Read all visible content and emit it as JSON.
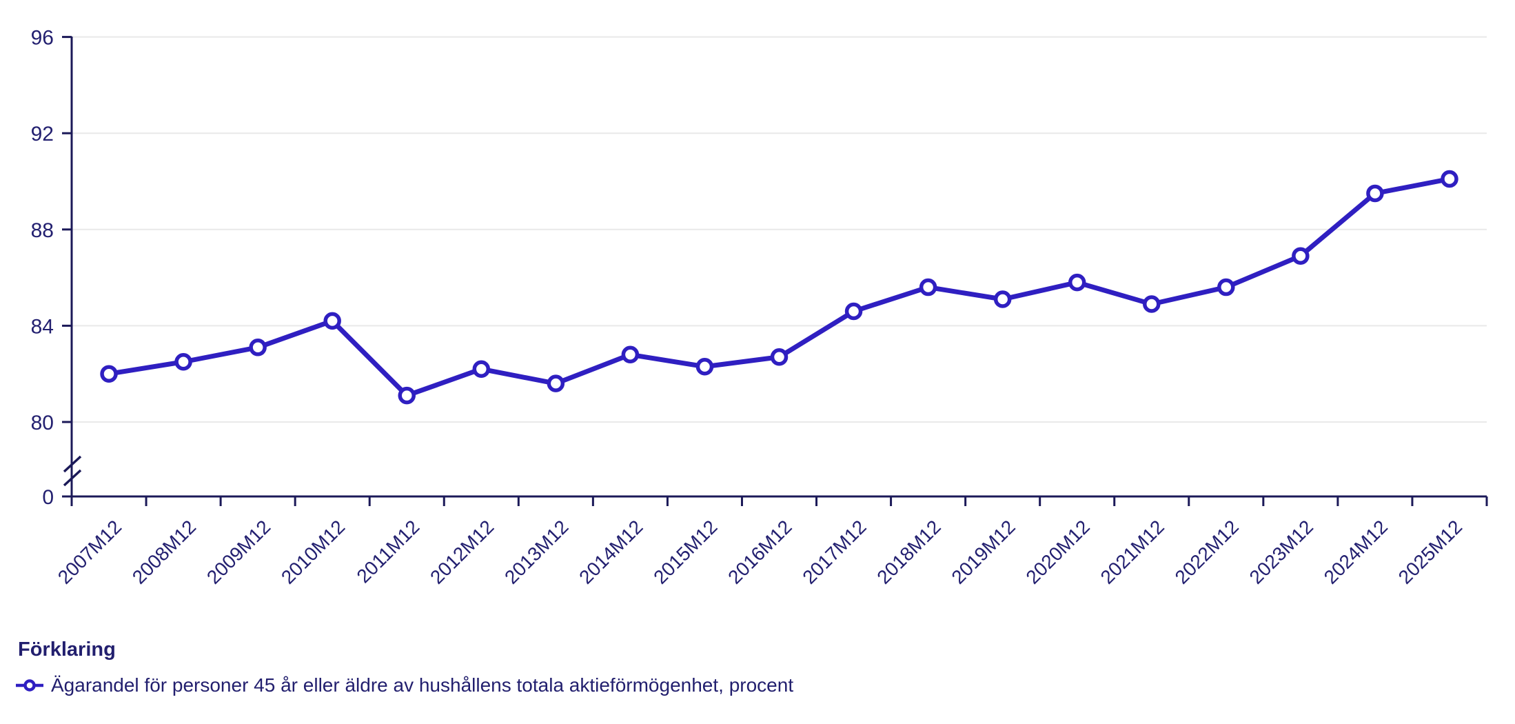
{
  "chart_data": {
    "type": "line",
    "title": "",
    "xlabel": "",
    "ylabel": "",
    "legend_title": "Förklaring",
    "legend_position": "bottom-left",
    "categories": [
      "2007M12",
      "2008M12",
      "2009M12",
      "2010M12",
      "2011M12",
      "2012M12",
      "2013M12",
      "2014M12",
      "2015M12",
      "2016M12",
      "2017M12",
      "2018M12",
      "2019M12",
      "2020M12",
      "2021M12",
      "2022M12",
      "2023M12",
      "2024M12",
      "2025M12"
    ],
    "series": [
      {
        "name": "Ägarandel för personer 45 år eller äldre av hushållens totala aktieförmögenhet, procent",
        "values": [
          82.0,
          82.5,
          83.1,
          84.2,
          81.1,
          82.2,
          81.6,
          82.8,
          82.3,
          82.7,
          84.6,
          85.6,
          85.1,
          85.8,
          84.9,
          85.6,
          86.9,
          89.5,
          90.1
        ]
      }
    ],
    "y_ticks": [
      0,
      80,
      84,
      88,
      92,
      96
    ],
    "ylim": [
      80,
      96
    ],
    "axis_break_between": [
      0,
      80
    ],
    "grid": "horizontal",
    "marker_style": "open-circle",
    "colors": {
      "line": "#2f1fc1",
      "axis": "#1b1958",
      "text": "#232070",
      "grid": "#e9e9e9"
    }
  }
}
